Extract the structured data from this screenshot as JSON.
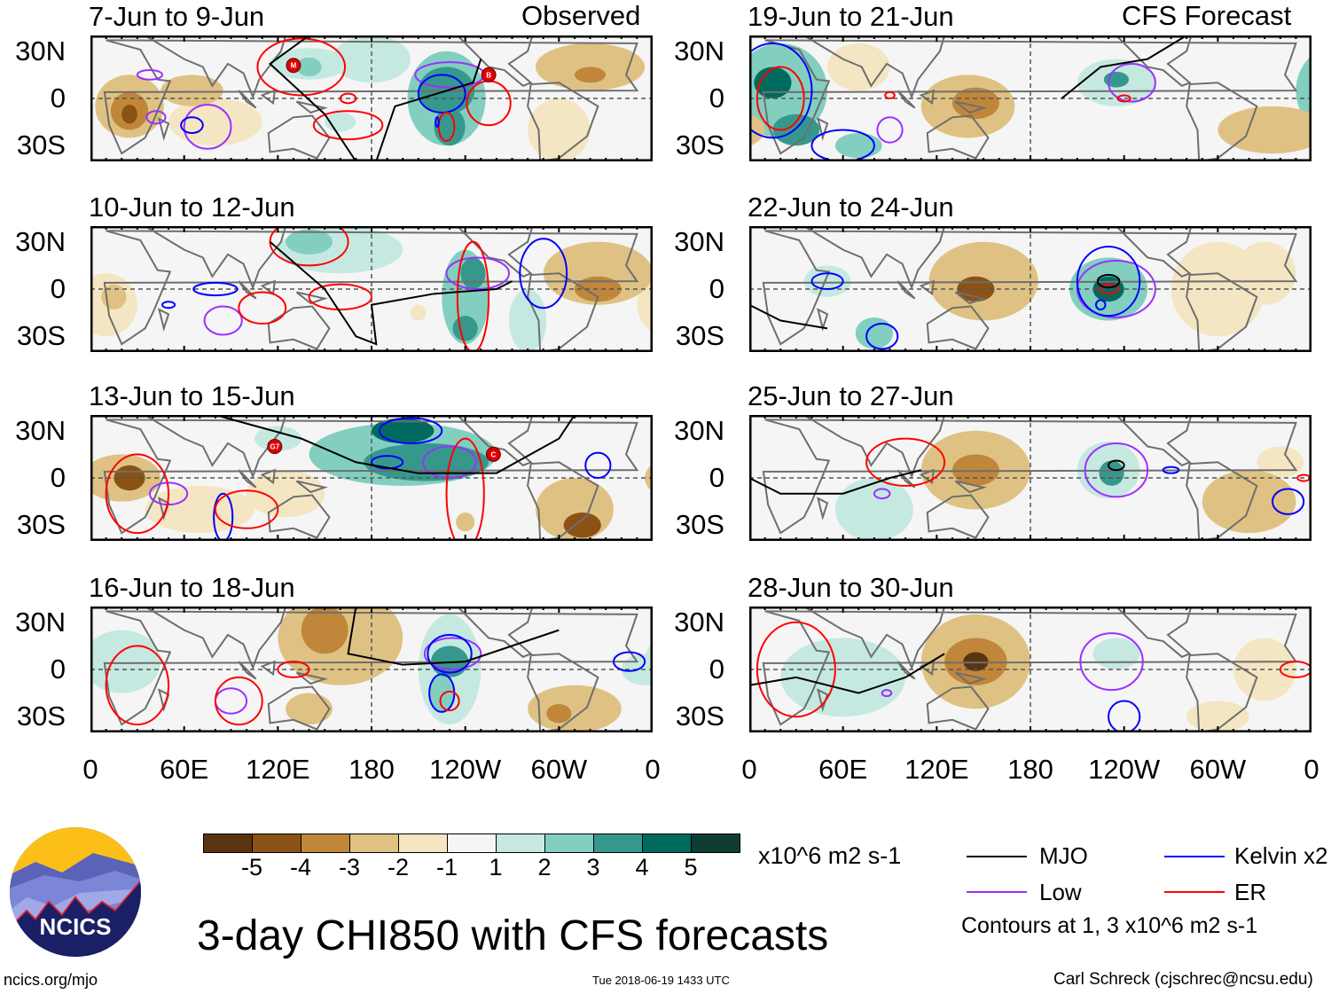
{
  "headers": {
    "observed": "Observed",
    "forecast": "CFS Forecast"
  },
  "y_ticks": [
    "30N",
    "0",
    "30S"
  ],
  "x_ticks": [
    "0",
    "60E",
    "120E",
    "180",
    "120W",
    "60W",
    "0"
  ],
  "x_tick_lons": [
    0,
    60,
    120,
    180,
    240,
    300,
    360
  ],
  "lat_range": [
    -40,
    40
  ],
  "colors": {
    "-6": "#5a3410",
    "-5": "#8b5216",
    "-4": "#c0863a",
    "-3": "#dfc283",
    "-2": "#f4e6c3",
    "0": "#f5f5f5",
    "2": "#c5e9e1",
    "3": "#82cfc0",
    "4": "#36988d",
    "5": "#006a5f",
    "6": "#0f3d34",
    "MJO": "#000000",
    "Low": "#9b30ff",
    "Kelvin": "#0000ff",
    "ER": "#ff0000"
  },
  "panels": [
    {
      "title": "7-Jun to 9-Jun",
      "group": "observed",
      "anom": [
        [
          25,
          -5,
          22,
          20,
          -3
        ],
        [
          25,
          -8,
          12,
          12,
          -4
        ],
        [
          25,
          -10,
          5,
          6,
          -5
        ],
        [
          65,
          5,
          20,
          10,
          -3
        ],
        [
          80,
          -15,
          30,
          15,
          -2
        ],
        [
          320,
          20,
          35,
          15,
          -3
        ],
        [
          320,
          15,
          10,
          5,
          -4
        ],
        [
          300,
          -20,
          20,
          20,
          -2
        ],
        [
          140,
          22,
          25,
          10,
          2
        ],
        [
          140,
          20,
          8,
          6,
          3
        ],
        [
          180,
          25,
          25,
          15,
          2
        ],
        [
          228,
          0,
          25,
          30,
          3
        ],
        [
          228,
          5,
          18,
          15,
          4
        ],
        [
          230,
          -18,
          10,
          12,
          4
        ],
        [
          160,
          -15,
          10,
          6,
          2
        ]
      ],
      "cont": [
        [
          230,
          15,
          22,
          8,
          "Low"
        ],
        [
          38,
          15,
          8,
          3,
          "Low"
        ],
        [
          42,
          -12,
          6,
          4,
          "Low"
        ],
        [
          75,
          -18,
          15,
          14,
          "Low"
        ],
        [
          225,
          3,
          15,
          12,
          "Kelvin"
        ],
        [
          65,
          -17,
          7,
          5,
          "Kelvin"
        ],
        [
          135,
          20,
          28,
          18,
          "ER"
        ],
        [
          165,
          -17,
          22,
          9,
          "ER"
        ],
        [
          255,
          -3,
          14,
          14,
          "ER"
        ],
        [
          228,
          -18,
          5,
          9,
          "ER"
        ],
        [
          165,
          0,
          5,
          3,
          "ER"
        ],
        [
          222,
          -15,
          1,
          3,
          "Kelvin"
        ]
      ],
      "mjo": [
        [
          140,
          40
        ],
        [
          115,
          22
        ],
        [
          150,
          -10
        ],
        [
          170,
          -40
        ],
        [
          183,
          -40
        ],
        [
          195,
          -5
        ],
        [
          245,
          10
        ],
        [
          250,
          25
        ]
      ],
      "storms": [
        {
          "label": "M",
          "lon": 130,
          "lat": 21
        },
        {
          "label": "B",
          "lon": 255,
          "lat": 15
        }
      ]
    },
    {
      "title": "10-Jun to 12-Jun",
      "group": "observed",
      "anom": [
        [
          10,
          -10,
          20,
          20,
          -2
        ],
        [
          15,
          -5,
          8,
          8,
          -3
        ],
        [
          325,
          10,
          35,
          20,
          -3
        ],
        [
          325,
          0,
          15,
          8,
          -4
        ],
        [
          160,
          25,
          40,
          15,
          2
        ],
        [
          140,
          30,
          15,
          8,
          3
        ],
        [
          240,
          -5,
          15,
          30,
          3
        ],
        [
          245,
          10,
          8,
          10,
          4
        ],
        [
          240,
          -25,
          8,
          8,
          4
        ],
        [
          210,
          -15,
          5,
          5,
          -2
        ],
        [
          280,
          -20,
          12,
          20,
          2
        ]
      ],
      "cont": [
        [
          248,
          10,
          20,
          10,
          "Low"
        ],
        [
          85,
          -20,
          12,
          9,
          "Low"
        ],
        [
          50,
          -10,
          4,
          2,
          "Kelvin"
        ],
        [
          80,
          0,
          14,
          4,
          "Kelvin"
        ],
        [
          290,
          10,
          15,
          22,
          "Kelvin"
        ],
        [
          140,
          30,
          25,
          15,
          "ER"
        ],
        [
          245,
          -5,
          10,
          35,
          "ER"
        ],
        [
          110,
          -12,
          15,
          10,
          "ER"
        ],
        [
          160,
          -5,
          20,
          8,
          "ER"
        ]
      ],
      "mjo": [
        [
          115,
          30
        ],
        [
          150,
          0
        ],
        [
          170,
          -30
        ],
        [
          183,
          -35
        ],
        [
          180,
          -10
        ],
        [
          220,
          -3
        ],
        [
          260,
          0
        ],
        [
          270,
          5
        ]
      ],
      "storms": []
    },
    {
      "title": "13-Jun to 15-Jun",
      "group": "observed",
      "anom": [
        [
          20,
          0,
          25,
          15,
          -3
        ],
        [
          25,
          0,
          10,
          8,
          -5
        ],
        [
          70,
          -20,
          35,
          15,
          -2
        ],
        [
          125,
          -10,
          25,
          15,
          -2
        ],
        [
          310,
          -20,
          25,
          20,
          -3
        ],
        [
          315,
          -30,
          12,
          8,
          -5
        ],
        [
          200,
          15,
          60,
          20,
          3
        ],
        [
          215,
          10,
          40,
          12,
          4
        ],
        [
          200,
          30,
          20,
          8,
          5
        ],
        [
          120,
          25,
          15,
          8,
          2
        ],
        [
          240,
          -28,
          6,
          6,
          -3
        ]
      ],
      "cont": [
        [
          230,
          10,
          17,
          10,
          "Low"
        ],
        [
          50,
          -10,
          12,
          7,
          "Low"
        ],
        [
          190,
          10,
          10,
          4,
          "Kelvin"
        ],
        [
          205,
          30,
          20,
          8,
          "Kelvin"
        ],
        [
          85,
          -25,
          6,
          15,
          "Kelvin"
        ],
        [
          325,
          8,
          8,
          8,
          "Kelvin"
        ],
        [
          30,
          -10,
          20,
          25,
          "ER"
        ],
        [
          100,
          -20,
          20,
          12,
          "ER"
        ],
        [
          240,
          -10,
          12,
          35,
          "ER"
        ]
      ],
      "mjo": [
        [
          80,
          40
        ],
        [
          135,
          25
        ],
        [
          170,
          10
        ],
        [
          210,
          3
        ],
        [
          260,
          3
        ],
        [
          300,
          25
        ],
        [
          310,
          40
        ]
      ],
      "storms": [
        {
          "label": "G7",
          "lon": 118,
          "lat": 20
        },
        {
          "label": "C",
          "lon": 258,
          "lat": 15
        }
      ]
    },
    {
      "title": "16-Jun to 18-Jun",
      "group": "observed",
      "anom": [
        [
          20,
          5,
          25,
          20,
          2
        ],
        [
          160,
          20,
          40,
          30,
          -3
        ],
        [
          150,
          25,
          15,
          15,
          -4
        ],
        [
          140,
          -25,
          15,
          10,
          -3
        ],
        [
          310,
          -25,
          30,
          15,
          -3
        ],
        [
          300,
          -28,
          8,
          6,
          -4
        ],
        [
          230,
          0,
          20,
          35,
          2
        ],
        [
          225,
          -15,
          8,
          12,
          3
        ],
        [
          230,
          5,
          12,
          10,
          4
        ],
        [
          355,
          0,
          15,
          10,
          2
        ]
      ],
      "cont": [
        [
          232,
          10,
          18,
          10,
          "Low"
        ],
        [
          90,
          -20,
          10,
          8,
          "Low"
        ],
        [
          225,
          -15,
          8,
          12,
          "Kelvin"
        ],
        [
          230,
          10,
          14,
          12,
          "Kelvin"
        ],
        [
          345,
          5,
          10,
          6,
          "Kelvin"
        ],
        [
          30,
          -10,
          20,
          25,
          "ER"
        ],
        [
          95,
          -20,
          15,
          15,
          "ER"
        ],
        [
          230,
          -20,
          6,
          6,
          "ER"
        ],
        [
          130,
          0,
          10,
          5,
          "ER"
        ]
      ],
      "mjo": [
        [
          170,
          40
        ],
        [
          165,
          10
        ],
        [
          200,
          3
        ],
        [
          240,
          5
        ],
        [
          270,
          15
        ],
        [
          300,
          25
        ]
      ],
      "storms": []
    },
    {
      "title": "19-Jun to 21-Jun",
      "group": "forecast",
      "anom": [
        [
          20,
          5,
          30,
          30,
          3
        ],
        [
          15,
          10,
          12,
          10,
          5
        ],
        [
          30,
          -20,
          15,
          10,
          4
        ],
        [
          140,
          -5,
          30,
          20,
          -3
        ],
        [
          145,
          -3,
          15,
          10,
          -4
        ],
        [
          70,
          20,
          20,
          15,
          -2
        ],
        [
          335,
          -20,
          35,
          15,
          -3
        ],
        [
          235,
          10,
          25,
          15,
          2
        ],
        [
          235,
          12,
          8,
          5,
          4
        ],
        [
          70,
          -30,
          15,
          8,
          3
        ]
      ],
      "cont": [
        [
          245,
          10,
          15,
          12,
          "Low"
        ],
        [
          90,
          -20,
          8,
          8,
          "Low"
        ],
        [
          15,
          5,
          25,
          30,
          "Kelvin"
        ],
        [
          60,
          -30,
          20,
          10,
          "Kelvin"
        ],
        [
          20,
          0,
          15,
          20,
          "ER"
        ],
        [
          90,
          2,
          3,
          2,
          "ER"
        ],
        [
          240,
          0,
          4,
          2,
          "ER"
        ]
      ],
      "mjo": [
        [
          200,
          0
        ],
        [
          225,
          20
        ],
        [
          255,
          25
        ],
        [
          280,
          40
        ]
      ],
      "storms": []
    },
    {
      "title": "22-Jun to 24-Jun",
      "group": "forecast",
      "anom": [
        [
          150,
          5,
          35,
          25,
          -3
        ],
        [
          145,
          0,
          12,
          8,
          -5
        ],
        [
          300,
          0,
          30,
          30,
          -2
        ],
        [
          330,
          10,
          20,
          20,
          -2
        ],
        [
          230,
          0,
          25,
          20,
          3
        ],
        [
          230,
          0,
          10,
          8,
          5
        ],
        [
          80,
          -28,
          12,
          10,
          3
        ],
        [
          50,
          5,
          15,
          10,
          2
        ]
      ],
      "cont": [
        [
          235,
          0,
          25,
          18,
          "Low"
        ],
        [
          230,
          5,
          20,
          22,
          "Kelvin"
        ],
        [
          85,
          -30,
          10,
          8,
          "Kelvin"
        ],
        [
          50,
          5,
          10,
          5,
          "Kelvin"
        ],
        [
          225,
          -10,
          3,
          3,
          "Kelvin"
        ],
        [
          230,
          0,
          6,
          3,
          "ER"
        ],
        [
          230,
          5,
          7,
          4,
          "MJO"
        ]
      ],
      "mjo": [
        [
          0,
          -10
        ],
        [
          20,
          -20
        ],
        [
          50,
          -25
        ]
      ],
      "storms": []
    },
    {
      "title": "25-Jun to 27-Jun",
      "group": "forecast",
      "anom": [
        [
          145,
          5,
          35,
          25,
          -3
        ],
        [
          145,
          5,
          15,
          10,
          -4
        ],
        [
          320,
          -15,
          30,
          20,
          -3
        ],
        [
          340,
          10,
          15,
          10,
          -2
        ],
        [
          230,
          5,
          20,
          18,
          2
        ],
        [
          232,
          3,
          8,
          8,
          4
        ],
        [
          80,
          -20,
          25,
          20,
          2
        ]
      ],
      "cont": [
        [
          235,
          5,
          20,
          17,
          "Low"
        ],
        [
          85,
          -10,
          5,
          3,
          "Low"
        ],
        [
          270,
          5,
          5,
          2,
          "Kelvin"
        ],
        [
          345,
          -15,
          10,
          8,
          "Kelvin"
        ],
        [
          100,
          10,
          25,
          15,
          "ER"
        ],
        [
          355,
          0,
          4,
          2,
          "ER"
        ],
        [
          235,
          8,
          5,
          3,
          "MJO"
        ]
      ],
      "mjo": [
        [
          0,
          0
        ],
        [
          20,
          -10
        ],
        [
          60,
          -10
        ],
        [
          90,
          0
        ],
        [
          110,
          5
        ]
      ],
      "storms": []
    },
    {
      "title": "28-Jun to 30-Jun",
      "group": "forecast",
      "anom": [
        [
          145,
          5,
          35,
          30,
          -3
        ],
        [
          145,
          5,
          20,
          15,
          -4
        ],
        [
          145,
          5,
          8,
          6,
          -6
        ],
        [
          330,
          0,
          20,
          20,
          -2
        ],
        [
          60,
          -5,
          40,
          25,
          2
        ],
        [
          235,
          10,
          15,
          10,
          2
        ],
        [
          300,
          -30,
          20,
          10,
          -2
        ]
      ],
      "cont": [
        [
          232,
          5,
          20,
          18,
          "Low"
        ],
        [
          88,
          -15,
          3,
          2,
          "Low"
        ],
        [
          240,
          -30,
          10,
          10,
          "Kelvin"
        ],
        [
          30,
          0,
          25,
          30,
          "ER"
        ],
        [
          350,
          0,
          10,
          5,
          "ER"
        ]
      ],
      "mjo": [
        [
          0,
          -10
        ],
        [
          30,
          -5
        ],
        [
          70,
          -15
        ],
        [
          100,
          -5
        ],
        [
          125,
          10
        ]
      ],
      "storms": []
    }
  ],
  "colorbar": {
    "labels": [
      "-5",
      "-4",
      "-3",
      "-2",
      "-1",
      "1",
      "2",
      "3",
      "4",
      "5"
    ],
    "units": "x10^6 m2 s-1",
    "colors": [
      "#5a3410",
      "#8b5216",
      "#c0863a",
      "#dfc283",
      "#f4e6c3",
      "#f5f5f5",
      "#c5e9e1",
      "#82cfc0",
      "#36988d",
      "#006a5f",
      "#0f3d34"
    ]
  },
  "legend": {
    "mjo": "MJO",
    "kelvin": "Kelvin x2",
    "low": "Low",
    "er": "ER",
    "contours_note": "Contours at 1, 3 x10^6 m2 s-1"
  },
  "title": "3-day CHI850 with CFS forecasts",
  "logo_text": "NCICS",
  "footer": {
    "url": "ncics.org/mjo",
    "timestamp": "Tue 2018-06-19 1433 UTC",
    "author": "Carl Schreck (cjschrec@ncsu.edu)"
  }
}
